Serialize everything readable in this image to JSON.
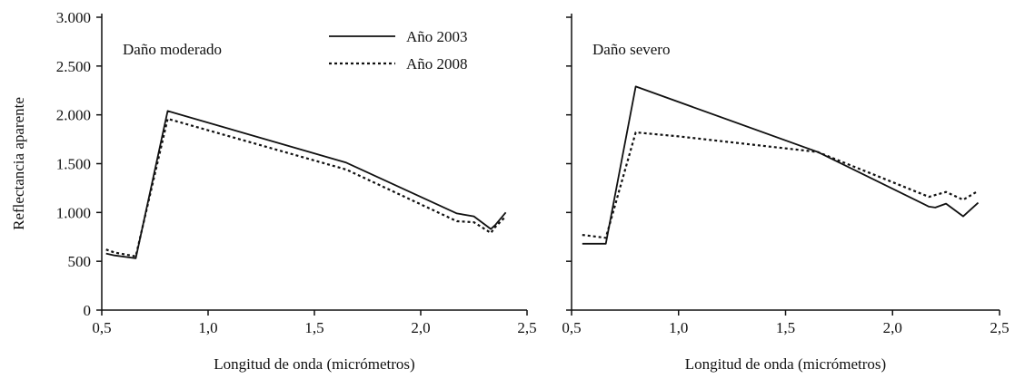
{
  "chart_data": [
    {
      "type": "line",
      "panel_label": "Daño moderado",
      "xlabel": "Longitud de onda (micrómetros)",
      "ylabel": "Reflectancia aparente",
      "xlim": [
        0.5,
        2.5
      ],
      "ylim": [
        0,
        3000
      ],
      "x_ticks": [
        0.5,
        1.0,
        1.5,
        2.0,
        2.5
      ],
      "x_tick_labels": [
        "0,5",
        "1,0",
        "1,5",
        "2,0",
        "2,5"
      ],
      "y_ticks": [
        0,
        500,
        1000,
        1500,
        2000,
        2500,
        3000
      ],
      "y_tick_labels": [
        "0",
        "500",
        "1.000",
        "1.500",
        "2.000",
        "2.500",
        "3.000"
      ],
      "legend_position": "top-center",
      "series": [
        {
          "name": "Año 2003",
          "style": "solid",
          "points": [
            [
              0.52,
              580
            ],
            [
              0.56,
              560
            ],
            [
              0.66,
              530
            ],
            [
              0.81,
              2040
            ],
            [
              1.65,
              1510
            ],
            [
              2.17,
              990
            ],
            [
              2.25,
              960
            ],
            [
              2.33,
              830
            ],
            [
              2.35,
              870
            ],
            [
              2.4,
              1000
            ]
          ]
        },
        {
          "name": "Año 2008",
          "style": "dotted",
          "points": [
            [
              0.52,
              620
            ],
            [
              0.56,
              590
            ],
            [
              0.66,
              550
            ],
            [
              0.81,
              1960
            ],
            [
              1.65,
              1440
            ],
            [
              2.17,
              910
            ],
            [
              2.25,
              900
            ],
            [
              2.33,
              790
            ],
            [
              2.35,
              850
            ],
            [
              2.4,
              960
            ]
          ]
        }
      ]
    },
    {
      "type": "line",
      "panel_label": "Daño severo",
      "xlabel": "Longitud de onda (micrómetros)",
      "ylabel": "",
      "xlim": [
        0.5,
        2.5
      ],
      "ylim": [
        0,
        3000
      ],
      "x_ticks": [
        0.5,
        1.0,
        1.5,
        2.0,
        2.5
      ],
      "x_tick_labels": [
        "0,5",
        "1,0",
        "1,5",
        "2,0",
        "2,5"
      ],
      "y_ticks": [
        0,
        500,
        1000,
        1500,
        2000,
        2500,
        3000
      ],
      "y_tick_labels": [],
      "series": [
        {
          "name": "Año 2003",
          "style": "solid",
          "points": [
            [
              0.55,
              680
            ],
            [
              0.66,
              680
            ],
            [
              0.8,
              2290
            ],
            [
              1.65,
              1620
            ],
            [
              2.17,
              1060
            ],
            [
              2.2,
              1050
            ],
            [
              2.25,
              1090
            ],
            [
              2.33,
              960
            ],
            [
              2.4,
              1100
            ]
          ]
        },
        {
          "name": "Año 2008",
          "style": "dotted",
          "points": [
            [
              0.55,
              770
            ],
            [
              0.66,
              740
            ],
            [
              0.8,
              1820
            ],
            [
              1.0,
              1780
            ],
            [
              1.65,
              1620
            ],
            [
              2.17,
              1160
            ],
            [
              2.25,
              1210
            ],
            [
              2.33,
              1130
            ],
            [
              2.4,
              1220
            ]
          ]
        }
      ]
    }
  ]
}
